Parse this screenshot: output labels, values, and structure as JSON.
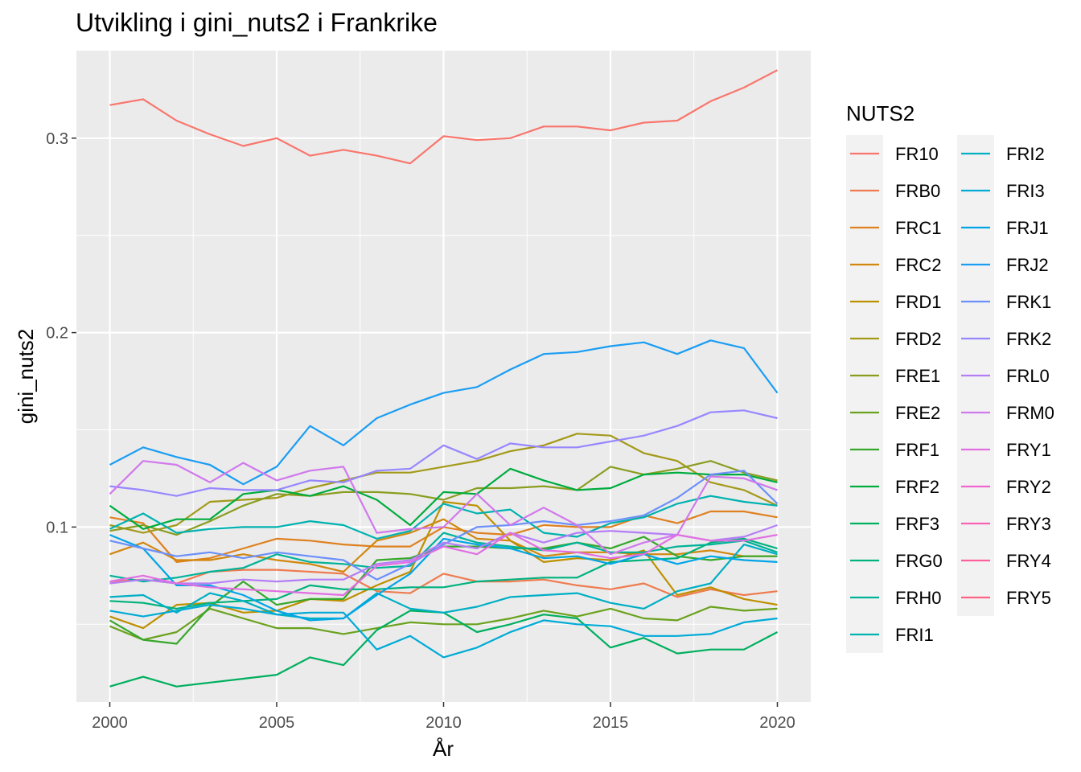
{
  "chart_data": {
    "type": "line",
    "title": "Utvikling i gini_nuts2 i Frankrike",
    "xlabel": "År",
    "ylabel": "gini_nuts2",
    "xlim": [
      1999.0,
      2021.0
    ],
    "ylim": [
      0.01,
      0.345
    ],
    "x_ticks": [
      2000,
      2005,
      2010,
      2015,
      2020
    ],
    "y_ticks": [
      0.1,
      0.2,
      0.3
    ],
    "x_tick_labels": [
      "2000",
      "2005",
      "2010",
      "2015",
      "2020"
    ],
    "y_tick_labels": [
      "0.1",
      "0.2",
      "0.3"
    ],
    "grid": true,
    "legend": {
      "title": "NUTS2",
      "position": "right",
      "columns": 2
    },
    "x": [
      2000,
      2001,
      2002,
      2003,
      2004,
      2005,
      2006,
      2007,
      2008,
      2009,
      2010,
      2011,
      2012,
      2013,
      2014,
      2015,
      2016,
      2017,
      2018,
      2019,
      2020
    ],
    "series": [
      {
        "name": "FR10",
        "color": "#F8766D",
        "values": [
          0.317,
          0.32,
          0.309,
          0.302,
          0.296,
          0.3,
          0.291,
          0.294,
          0.291,
          0.287,
          0.301,
          0.299,
          0.3,
          0.306,
          0.306,
          0.304,
          0.308,
          0.309,
          0.319,
          0.326,
          0.335
        ]
      },
      {
        "name": "FRB0",
        "color": "#EE7B4F",
        "values": [
          0.072,
          0.073,
          0.071,
          0.077,
          0.078,
          0.078,
          0.077,
          0.076,
          0.067,
          0.066,
          0.076,
          0.072,
          0.072,
          0.073,
          0.07,
          0.068,
          0.071,
          0.064,
          0.068,
          0.065,
          0.067
        ]
      },
      {
        "name": "FRC1",
        "color": "#DF8121",
        "values": [
          0.105,
          0.102,
          0.082,
          0.084,
          0.089,
          0.094,
          0.093,
          0.091,
          0.09,
          0.09,
          0.1,
          0.097,
          0.096,
          0.101,
          0.1,
          0.1,
          0.106,
          0.102,
          0.108,
          0.108,
          0.105
        ]
      },
      {
        "name": "FRC2",
        "color": "#D2870F",
        "values": [
          0.086,
          0.092,
          0.083,
          0.083,
          0.086,
          0.083,
          0.081,
          0.077,
          0.093,
          0.097,
          0.104,
          0.094,
          0.093,
          0.085,
          0.087,
          0.087,
          0.086,
          0.086,
          0.088,
          0.085,
          0.085
        ]
      },
      {
        "name": "FRD1",
        "color": "#BD9000",
        "values": [
          0.054,
          0.048,
          0.06,
          0.061,
          0.056,
          0.057,
          0.063,
          0.062,
          0.07,
          0.077,
          0.113,
          0.111,
          0.093,
          0.082,
          0.084,
          0.083,
          0.088,
          0.065,
          0.069,
          0.063,
          0.06
        ]
      },
      {
        "name": "FRD2",
        "color": "#A39A1A",
        "values": [
          0.101,
          0.097,
          0.101,
          0.113,
          0.114,
          0.115,
          0.12,
          0.124,
          0.128,
          0.128,
          0.131,
          0.134,
          0.139,
          0.142,
          0.148,
          0.147,
          0.138,
          0.134,
          0.123,
          0.119,
          0.111
        ]
      },
      {
        "name": "FRE1",
        "color": "#8A9D20",
        "values": [
          0.098,
          0.101,
          0.096,
          0.103,
          0.111,
          0.117,
          0.116,
          0.118,
          0.118,
          0.117,
          0.114,
          0.12,
          0.12,
          0.121,
          0.119,
          0.131,
          0.127,
          0.13,
          0.134,
          0.128,
          0.124
        ]
      },
      {
        "name": "FRE2",
        "color": "#6AA21D",
        "values": [
          0.049,
          0.042,
          0.046,
          0.058,
          0.053,
          0.048,
          0.048,
          0.045,
          0.048,
          0.051,
          0.05,
          0.05,
          0.053,
          0.057,
          0.054,
          0.058,
          0.053,
          0.052,
          0.059,
          0.057,
          0.058
        ]
      },
      {
        "name": "FRF1",
        "color": "#37A72B",
        "values": [
          0.052,
          0.042,
          0.04,
          0.059,
          0.072,
          0.06,
          0.063,
          0.063,
          0.083,
          0.084,
          0.09,
          0.09,
          0.089,
          0.089,
          0.092,
          0.089,
          0.095,
          0.085,
          0.083,
          0.085,
          0.085
        ]
      },
      {
        "name": "FRF2",
        "color": "#00AC3E",
        "values": [
          0.111,
          0.099,
          0.104,
          0.104,
          0.117,
          0.119,
          0.116,
          0.121,
          0.114,
          0.101,
          0.118,
          0.117,
          0.13,
          0.124,
          0.119,
          0.12,
          0.127,
          0.128,
          0.127,
          0.127,
          0.123
        ]
      },
      {
        "name": "FRF3",
        "color": "#00AF5F",
        "values": [
          0.018,
          0.023,
          0.018,
          0.02,
          0.022,
          0.024,
          0.033,
          0.029,
          0.047,
          0.057,
          0.056,
          0.046,
          0.05,
          0.055,
          0.053,
          0.038,
          0.043,
          0.035,
          0.037,
          0.037,
          0.046
        ]
      },
      {
        "name": "FRG0",
        "color": "#00B27E",
        "values": [
          0.062,
          0.061,
          0.058,
          0.061,
          0.062,
          0.063,
          0.07,
          0.068,
          0.068,
          0.069,
          0.069,
          0.072,
          0.073,
          0.074,
          0.074,
          0.082,
          0.083,
          0.084,
          0.092,
          0.094,
          0.089
        ]
      },
      {
        "name": "FRH0",
        "color": "#00B398",
        "values": [
          0.075,
          0.072,
          0.074,
          0.077,
          0.079,
          0.086,
          0.082,
          0.081,
          0.079,
          0.08,
          0.097,
          0.092,
          0.09,
          0.088,
          0.092,
          0.087,
          0.087,
          0.09,
          0.091,
          0.093,
          0.087
        ]
      },
      {
        "name": "FRI1",
        "color": "#00B2B0",
        "values": [
          0.099,
          0.107,
          0.097,
          0.099,
          0.1,
          0.1,
          0.103,
          0.101,
          0.094,
          0.098,
          0.112,
          0.107,
          0.109,
          0.097,
          0.095,
          0.102,
          0.105,
          0.112,
          0.116,
          0.113,
          0.111
        ]
      },
      {
        "name": "FRI2",
        "color": "#00AFC4",
        "values": [
          0.064,
          0.065,
          0.056,
          0.066,
          0.062,
          0.055,
          0.053,
          0.053,
          0.066,
          0.058,
          0.056,
          0.059,
          0.064,
          0.065,
          0.066,
          0.061,
          0.058,
          0.067,
          0.071,
          0.091,
          0.086
        ]
      },
      {
        "name": "FRI3",
        "color": "#00ABD7",
        "values": [
          0.057,
          0.054,
          0.057,
          0.06,
          0.058,
          0.055,
          0.056,
          0.056,
          0.037,
          0.044,
          0.033,
          0.038,
          0.046,
          0.052,
          0.05,
          0.049,
          0.044,
          0.044,
          0.045,
          0.051,
          0.053
        ]
      },
      {
        "name": "FRJ1",
        "color": "#00A5E7",
        "values": [
          0.096,
          0.089,
          0.07,
          0.07,
          0.065,
          0.057,
          0.052,
          0.053,
          0.065,
          0.076,
          0.094,
          0.091,
          0.089,
          0.084,
          0.085,
          0.081,
          0.086,
          0.081,
          0.085,
          0.083,
          0.082
        ]
      },
      {
        "name": "FRJ2",
        "color": "#1A9DF3",
        "values": [
          0.132,
          0.141,
          0.136,
          0.132,
          0.122,
          0.131,
          0.152,
          0.142,
          0.156,
          0.163,
          0.169,
          0.172,
          0.181,
          0.189,
          0.19,
          0.193,
          0.195,
          0.189,
          0.196,
          0.192,
          0.169
        ]
      },
      {
        "name": "FRK1",
        "color": "#6C90FB",
        "values": [
          0.093,
          0.089,
          0.085,
          0.087,
          0.084,
          0.087,
          0.085,
          0.083,
          0.073,
          0.081,
          0.091,
          0.1,
          0.101,
          0.103,
          0.101,
          0.103,
          0.106,
          0.115,
          0.127,
          0.129,
          0.112
        ]
      },
      {
        "name": "FRK2",
        "color": "#9787FF",
        "values": [
          0.121,
          0.119,
          0.116,
          0.12,
          0.119,
          0.119,
          0.124,
          0.123,
          0.129,
          0.13,
          0.142,
          0.135,
          0.143,
          0.141,
          0.141,
          0.144,
          0.147,
          0.152,
          0.159,
          0.16,
          0.156
        ]
      },
      {
        "name": "FRL0",
        "color": "#B57DF6",
        "values": [
          0.071,
          0.073,
          0.071,
          0.071,
          0.073,
          0.072,
          0.073,
          0.073,
          0.081,
          0.083,
          0.092,
          0.089,
          0.097,
          0.092,
          0.097,
          0.098,
          0.097,
          0.096,
          0.093,
          0.095,
          0.101
        ]
      },
      {
        "name": "FRM0",
        "color": "#D079ED",
        "values": [
          0.117,
          0.134,
          0.132,
          0.123,
          0.133,
          0.124,
          0.129,
          0.131,
          0.097,
          0.099,
          0.1,
          0.117,
          0.101,
          0.11,
          0.101,
          0.086,
          0.092,
          0.096,
          0.126,
          0.125,
          0.119
        ]
      },
      {
        "name": "FRY1",
        "color": "#E26EE2",
        "values": [
          0.072,
          0.075,
          0.071,
          0.069,
          0.068,
          0.067,
          0.066,
          0.065,
          0.08,
          0.082,
          0.09,
          0.086,
          0.097,
          0.088,
          0.087,
          0.084,
          0.086,
          0.096,
          0.093,
          0.093,
          0.096
        ]
      },
      {
        "name": "FRY2",
        "color": "#F066CE",
        "values": [
          null,
          null,
          null,
          null,
          null,
          null,
          null,
          null,
          null,
          null,
          null,
          null,
          null,
          null,
          null,
          null,
          null,
          null,
          null,
          null,
          null
        ]
      },
      {
        "name": "FRY3",
        "color": "#F863B7",
        "values": [
          null,
          null,
          null,
          null,
          null,
          null,
          null,
          null,
          null,
          null,
          null,
          null,
          null,
          null,
          null,
          null,
          null,
          null,
          null,
          null,
          null
        ]
      },
      {
        "name": "FRY4",
        "color": "#FD619D",
        "values": [
          null,
          null,
          null,
          null,
          null,
          null,
          null,
          null,
          null,
          null,
          null,
          null,
          null,
          null,
          null,
          null,
          null,
          null,
          null,
          null,
          null
        ]
      },
      {
        "name": "FRY5",
        "color": "#FF6384",
        "values": [
          null,
          null,
          null,
          null,
          null,
          null,
          null,
          null,
          null,
          null,
          null,
          null,
          null,
          null,
          null,
          null,
          null,
          null,
          null,
          null,
          null
        ]
      }
    ]
  },
  "colors": {
    "panel_background": "#ebebeb",
    "grid_major": "#ffffff",
    "tick_text": "#4d4d4d",
    "legend_key_background": "#f2f2f2"
  }
}
